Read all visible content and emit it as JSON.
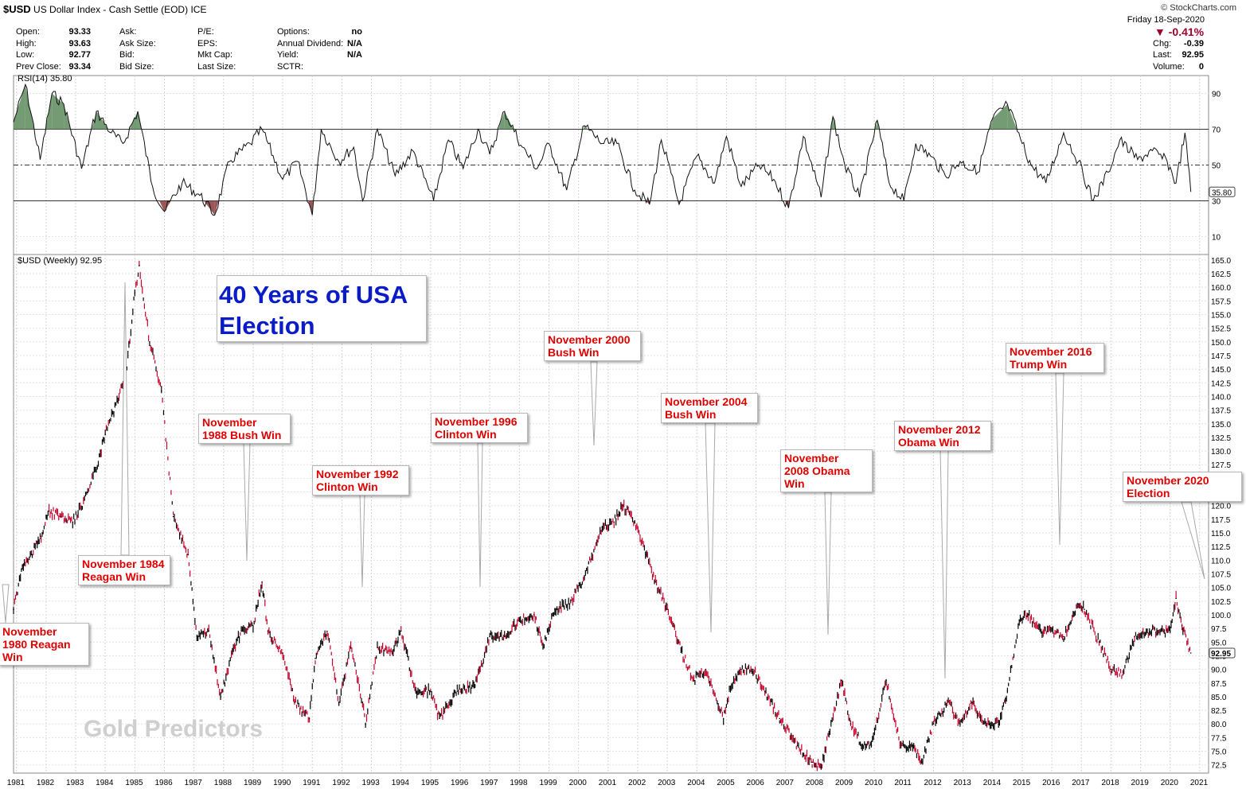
{
  "header": {
    "symbol": "$USD",
    "name": "US Dollar Index - Cash Settle (EOD)",
    "exchange": "ICE",
    "brand": "© StockCharts.com",
    "date": "Friday  18-Sep-2020",
    "pct_change": "▼ -0.41%",
    "quote_left": [
      {
        "label": "Open:",
        "value": "93.33"
      },
      {
        "label": "High:",
        "value": "93.63"
      },
      {
        "label": "Low:",
        "value": "92.77"
      },
      {
        "label": "Prev Close:",
        "value": "93.34"
      }
    ],
    "quote_mid": [
      "Ask:",
      "Ask Size:",
      "Bid:",
      "Bid Size:"
    ],
    "quote_mid2": [
      "P/E:",
      "EPS:",
      "Mkt Cap:",
      "Last Size:"
    ],
    "quote_right": [
      {
        "label": "Options:",
        "value": "no"
      },
      {
        "label": "Annual Dividend:",
        "value": "N/A"
      },
      {
        "label": "Yield:",
        "value": "N/A"
      },
      {
        "label": "SCTR:",
        "value": ""
      }
    ],
    "quote_far": [
      {
        "label": "Chg:",
        "value": "-0.39"
      },
      {
        "label": "Last:",
        "value": "92.95"
      },
      {
        "label": "Volume:",
        "value": "0"
      }
    ]
  },
  "colors": {
    "title": "#0a1cc8",
    "callout": "#e00000",
    "overbought_fill": "#5d8a5d",
    "oversold_fill": "#8a3a3a",
    "down_bar": "#c8002a"
  },
  "chart_data": [
    {
      "type": "line",
      "title": "RSI(14) 35.80",
      "last_value_label": "35.80",
      "ylim": [
        0,
        100
      ],
      "yticks": [
        10,
        30,
        50,
        70,
        90
      ],
      "reference_lines": [
        30,
        50,
        70
      ],
      "x": [
        1980.9,
        1981.3,
        1981.8,
        1982.2,
        1982.6,
        1983.2,
        1983.7,
        1984.2,
        1984.6,
        1985.1,
        1985.6,
        1986.0,
        1986.6,
        1987.2,
        1987.7,
        1988.2,
        1988.9,
        1989.3,
        1990.0,
        1990.5,
        1991.0,
        1991.3,
        1991.9,
        1992.4,
        1992.7,
        1993.2,
        1993.8,
        1994.4,
        1995.1,
        1995.6,
        1996.1,
        1996.6,
        1997.0,
        1997.5,
        1998.1,
        1998.6,
        1999.0,
        1999.6,
        2000.2,
        2000.8,
        2001.3,
        2001.9,
        2002.4,
        2002.8,
        2003.4,
        2004.0,
        2004.6,
        2005.0,
        2005.5,
        2006.1,
        2006.6,
        2007.1,
        2007.6,
        2008.2,
        2008.6,
        2009.0,
        2009.5,
        2010.1,
        2010.5,
        2011.0,
        2011.4,
        2011.9,
        2012.4,
        2012.9,
        2013.5,
        2014.0,
        2014.5,
        2015.0,
        2015.3,
        2015.8,
        2016.4,
        2016.9,
        2017.4,
        2017.9,
        2018.3,
        2018.9,
        2019.4,
        2019.9,
        2020.2,
        2020.5,
        2020.7
      ],
      "y": [
        74,
        95,
        53,
        90,
        84,
        48,
        80,
        68,
        62,
        80,
        38,
        24,
        40,
        33,
        22,
        52,
        62,
        70,
        42,
        52,
        22,
        70,
        52,
        60,
        30,
        70,
        44,
        58,
        30,
        64,
        48,
        70,
        56,
        80,
        60,
        48,
        62,
        36,
        72,
        62,
        62,
        36,
        28,
        64,
        28,
        55,
        40,
        66,
        38,
        50,
        42,
        26,
        66,
        32,
        77,
        50,
        32,
        75,
        40,
        30,
        62,
        55,
        44,
        52,
        46,
        76,
        84,
        62,
        50,
        40,
        68,
        52,
        30,
        46,
        64,
        53,
        58,
        52,
        40,
        68,
        35
      ]
    },
    {
      "type": "line",
      "title": "$USD (Weekly) 92.95",
      "last_value_label": "92.95",
      "ylim": [
        71,
        166
      ],
      "yticks": [
        72.5,
        75.0,
        77.5,
        80.0,
        82.5,
        85.0,
        87.5,
        90.0,
        92.5,
        95.0,
        97.5,
        100.0,
        102.5,
        105.0,
        107.5,
        110.0,
        112.5,
        115.0,
        117.5,
        120.0,
        122.5,
        125.0,
        127.5,
        130.0,
        132.5,
        135.0,
        137.5,
        140.0,
        142.5,
        145.0,
        147.5,
        150.0,
        152.5,
        155.0,
        157.5,
        160.0,
        162.5,
        165.0
      ],
      "xticks": [
        "1981",
        "1982",
        "1983",
        "1984",
        "1985",
        "1986",
        "1987",
        "1988",
        "1989",
        "1990",
        "1991",
        "1992",
        "1993",
        "1994",
        "1995",
        "1996",
        "1997",
        "1998",
        "1999",
        "2000",
        "2001",
        "2002",
        "2003",
        "2004",
        "2005",
        "2006",
        "2007",
        "2008",
        "2009",
        "2010",
        "2011",
        "2012",
        "2013",
        "2014",
        "2015",
        "2016",
        "2017",
        "2018",
        "2019",
        "2020",
        "2021"
      ],
      "x": [
        1980.9,
        1981.2,
        1981.5,
        1981.8,
        1982.1,
        1982.5,
        1982.9,
        1983.3,
        1983.7,
        1984.0,
        1984.4,
        1984.7,
        1985.0,
        1985.15,
        1985.5,
        1985.9,
        1986.3,
        1986.8,
        1987.1,
        1987.5,
        1987.9,
        1988.3,
        1988.6,
        1989.0,
        1989.3,
        1989.5,
        1990.0,
        1990.4,
        1990.9,
        1991.1,
        1991.5,
        1991.9,
        1992.3,
        1992.7,
        1992.8,
        1993.2,
        1993.7,
        1994.0,
        1994.5,
        1995.0,
        1995.3,
        1995.9,
        1996.5,
        1997.0,
        1997.5,
        1998.0,
        1998.5,
        1998.8,
        1999.2,
        1999.7,
        2000.2,
        2000.8,
        2001.2,
        2001.5,
        2001.9,
        2002.3,
        2002.6,
        2003.0,
        2003.5,
        2003.9,
        2004.3,
        2004.9,
        2005.1,
        2005.5,
        2005.9,
        2006.3,
        2006.8,
        2007.4,
        2007.9,
        2008.2,
        2008.5,
        2008.9,
        2009.2,
        2009.6,
        2009.9,
        2010.4,
        2010.9,
        2011.3,
        2011.6,
        2012.0,
        2012.5,
        2012.9,
        2013.3,
        2013.7,
        2014.2,
        2014.5,
        2014.9,
        2015.2,
        2015.6,
        2016.0,
        2016.4,
        2016.9,
        2017.1,
        2017.6,
        2018.0,
        2018.4,
        2018.8,
        2019.3,
        2019.8,
        2020.0,
        2020.2,
        2020.4,
        2020.7
      ],
      "y": [
        101,
        109,
        111,
        114,
        119,
        118,
        117,
        121,
        127,
        133,
        139,
        144,
        159,
        164,
        150,
        141,
        118,
        111,
        96,
        97,
        85,
        93,
        97,
        98,
        106,
        97,
        93,
        84,
        81,
        92,
        97,
        84,
        94,
        84,
        80,
        94,
        93,
        97,
        86,
        86,
        81,
        86,
        87,
        96,
        96,
        99,
        100,
        94,
        101,
        102,
        107,
        116,
        117,
        120,
        117,
        111,
        106,
        101,
        93,
        88,
        90,
        81,
        86,
        90,
        90,
        86,
        81,
        76,
        73,
        72,
        79,
        88,
        80,
        76,
        76,
        88,
        76,
        76,
        73,
        80,
        84,
        80,
        84,
        80,
        80,
        86,
        99,
        100,
        97,
        97,
        96,
        102,
        101,
        95,
        90,
        89,
        96,
        97,
        97,
        97,
        103,
        98,
        93
      ]
    }
  ],
  "callouts": [
    {
      "id": "1980",
      "text": "November\n1980 Reagan\nWin"
    },
    {
      "id": "1984",
      "text": "November 1984\nReagan Win"
    },
    {
      "id": "1988",
      "text": "November\n1988 Bush Win"
    },
    {
      "id": "1992",
      "text": "November 1992\nClinton Win"
    },
    {
      "id": "1996",
      "text": "November 1996\nClinton Win"
    },
    {
      "id": "2000",
      "text": "November 2000\nBush Win"
    },
    {
      "id": "2004",
      "text": "November 2004\nBush Win"
    },
    {
      "id": "2008",
      "text": "November\n2008 Obama\nWin"
    },
    {
      "id": "2012",
      "text": "November 2012\nObama Win"
    },
    {
      "id": "2016",
      "text": "November 2016\nTrump Win"
    },
    {
      "id": "2020",
      "text": "November 2020\nElection"
    }
  ],
  "big_title": "40 Years of USA\nElection",
  "watermark": "Gold Predictors"
}
